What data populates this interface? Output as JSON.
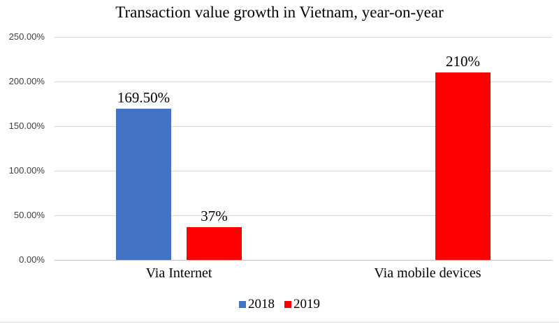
{
  "chart_data": {
    "type": "bar",
    "title": "Transaction value growth in Vietnam, year-on-year",
    "categories": [
      "Via Internet",
      "Via mobile devices"
    ],
    "series": [
      {
        "name": "2018",
        "color": "#4472C4",
        "values": [
          169.5,
          null
        ],
        "labels": [
          "169.50%",
          ""
        ]
      },
      {
        "name": "2019",
        "color": "#FF0000",
        "values": [
          37,
          210
        ],
        "labels": [
          "37%",
          "210%"
        ]
      }
    ],
    "yticks": [
      "250.00%",
      "200.00%",
      "150.00%",
      "100.00%",
      "50.00%",
      "0.00%"
    ],
    "ylim": [
      0,
      250
    ],
    "grid": true,
    "legend_position": "bottom",
    "xlabel": "",
    "ylabel": ""
  },
  "colors": {
    "grid": "#D9D9D9",
    "axis_line": "#BFBFBF",
    "title_text": "#000000",
    "tick_text": "#404040",
    "background": "#FFFFFF"
  }
}
